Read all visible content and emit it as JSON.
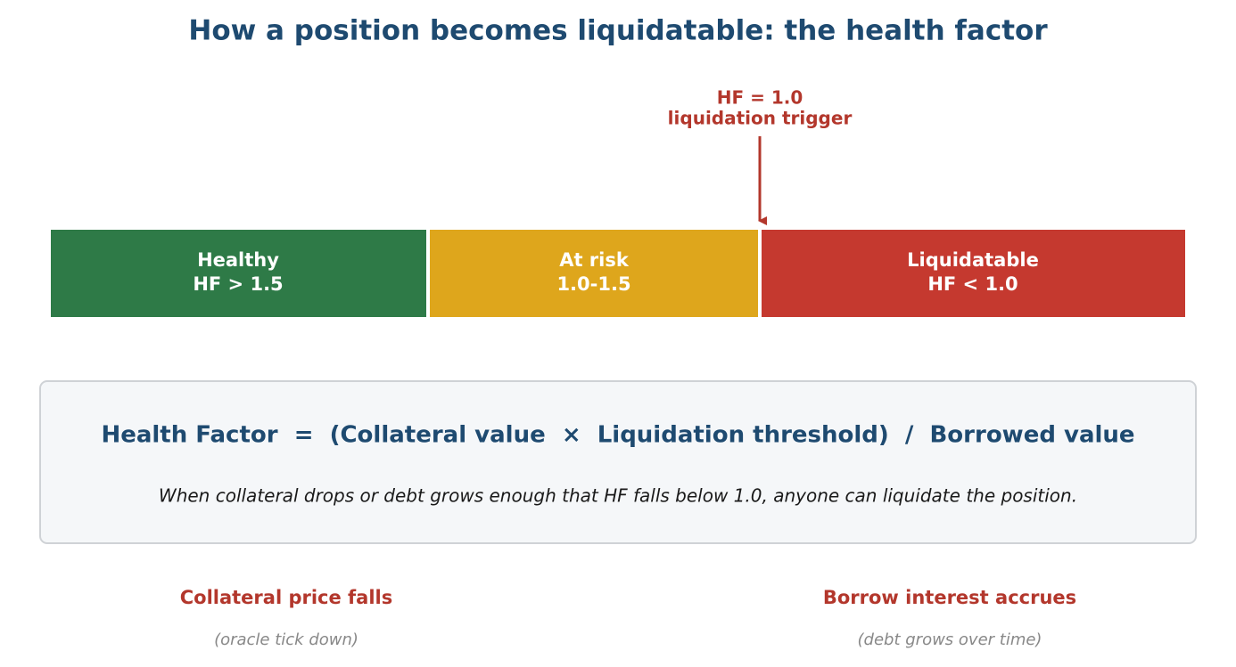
{
  "title": "How a position becomes liquidatable: the health factor",
  "trigger": {
    "lines": [
      "HF = 1.0",
      "liquidation trigger"
    ]
  },
  "segments": [
    {
      "label": "Healthy",
      "range": "HF > 1.5"
    },
    {
      "label": "At risk",
      "range": "1.0-1.5"
    },
    {
      "label": "Liquidatable",
      "range": "HF < 1.0"
    }
  ],
  "formula": {
    "equation": "Health Factor  =  (Collateral value  ×  Liquidation threshold)  /  Borrowed value",
    "note": "When collateral drops or debt grows enough that HF falls below 1.0, anyone can liquidate the position."
  },
  "drivers": [
    {
      "label": "Collateral price falls",
      "detail": "(oracle tick down)"
    },
    {
      "label": "Borrow interest accrues",
      "detail": "(debt grows over time)"
    }
  ]
}
